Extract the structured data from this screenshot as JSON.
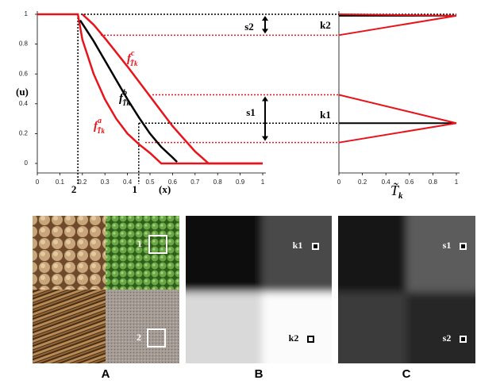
{
  "chart_data": [
    {
      "type": "line",
      "ylabel": "(u)",
      "xlabel": "(x)",
      "xlim": [
        0,
        1
      ],
      "ylim": [
        0,
        1
      ],
      "xticks": [
        0,
        0.1,
        0.2,
        0.3,
        0.4,
        0.5,
        0.6,
        0.7,
        0.8,
        0.9,
        1
      ],
      "yticks": [
        0,
        0.2,
        0.4,
        0.6,
        0.8,
        1
      ],
      "series": [
        {
          "name": "f",
          "sup": "a",
          "sub": "T̃k",
          "color": "#e8141b",
          "x": [
            0,
            0.18,
            0.2,
            0.25,
            0.3,
            0.35,
            0.4,
            0.45,
            0.5,
            0.55,
            1
          ],
          "values": [
            1,
            1,
            0.83,
            0.6,
            0.43,
            0.3,
            0.2,
            0.13,
            0.07,
            0,
            0
          ]
        },
        {
          "name": "f",
          "sup": "b",
          "sub": "T̃k",
          "color": "#000000",
          "x": [
            0.19,
            0.25,
            0.3,
            0.35,
            0.4,
            0.45,
            0.5,
            0.55,
            0.6,
            0.62
          ],
          "values": [
            0.96,
            0.82,
            0.69,
            0.56,
            0.43,
            0.31,
            0.2,
            0.11,
            0.04,
            0.01
          ]
        },
        {
          "name": "f",
          "sup": "c",
          "sub": "T̃k",
          "color": "#e8141b",
          "x": [
            0.2,
            0.25,
            0.3,
            0.4,
            0.5,
            0.6,
            0.7,
            0.76,
            1
          ],
          "values": [
            1,
            0.93,
            0.84,
            0.65,
            0.45,
            0.25,
            0.08,
            0,
            0
          ]
        }
      ],
      "hlines": [
        {
          "value": 1,
          "color": "#000000"
        },
        {
          "value": 0.86,
          "color": "#e8141b"
        },
        {
          "value": 0.46,
          "color": "#e8141b"
        },
        {
          "value": 0.27,
          "color": "#000000"
        },
        {
          "value": 0.14,
          "color": "#e8141b"
        }
      ],
      "vlines": [
        {
          "value": 0.18,
          "label": "2"
        },
        {
          "value": 0.45,
          "label": "1"
        }
      ],
      "annotations": [
        "s2",
        "s1"
      ]
    },
    {
      "type": "line",
      "xlabel": "T̃",
      "xlabel_sub": "k",
      "xlim": [
        0,
        1
      ],
      "ylim": [
        0,
        1
      ],
      "xticks": [
        0,
        0.2,
        0.4,
        0.6,
        0.8,
        1
      ],
      "series": [
        {
          "color": "#000000",
          "x": [
            0,
            1
          ],
          "values": [
            0.99,
            0.99
          ]
        },
        {
          "color": "#e8141b",
          "x": [
            0,
            1
          ],
          "values": [
            1,
            0.99
          ]
        },
        {
          "color": "#e8141b",
          "x": [
            0,
            1
          ],
          "values": [
            0.86,
            0.99
          ]
        },
        {
          "color": "#000000",
          "x": [
            0,
            1
          ],
          "values": [
            0.27,
            0.27
          ]
        },
        {
          "color": "#e8141b",
          "x": [
            0,
            1
          ],
          "values": [
            0.46,
            0.27
          ]
        },
        {
          "color": "#e8141b",
          "x": [
            0,
            1
          ],
          "values": [
            0.14,
            0.27
          ]
        }
      ],
      "annotations": [
        "k2",
        "k1"
      ]
    }
  ],
  "panels": [
    {
      "label": "A",
      "marks": [
        "1",
        "2"
      ]
    },
    {
      "label": "B",
      "marks": [
        "k1",
        "k2"
      ]
    },
    {
      "label": "C",
      "marks": [
        "s1",
        "s2"
      ]
    }
  ]
}
